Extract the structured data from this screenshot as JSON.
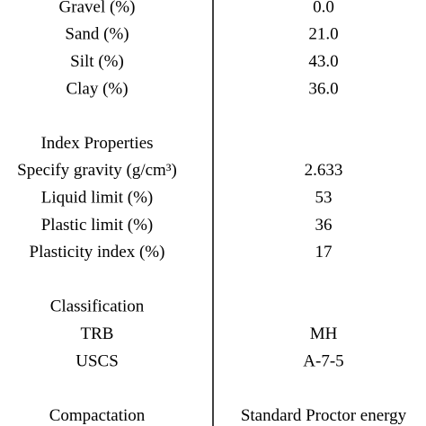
{
  "table": {
    "groups": [
      [
        [
          "Gravel (%)",
          "0.0"
        ],
        [
          "Sand (%)",
          "21.0"
        ],
        [
          "Silt (%)",
          "43.0"
        ],
        [
          "Clay (%)",
          "36.0"
        ]
      ],
      [
        [
          "Index Properties"
        ],
        [
          "Specify gravity (g/cm³)",
          "2.633"
        ],
        [
          "Liquid limit (%)",
          "53"
        ],
        [
          "Plastic limit (%)",
          "36"
        ],
        [
          "Plasticity index (%)",
          "17"
        ]
      ],
      [
        [
          "Classification"
        ],
        [
          "TRB",
          "MH"
        ],
        [
          "USCS",
          "A-7-5"
        ]
      ],
      [
        [
          "Compactation",
          "Standard Proctor energy"
        ]
      ]
    ]
  }
}
